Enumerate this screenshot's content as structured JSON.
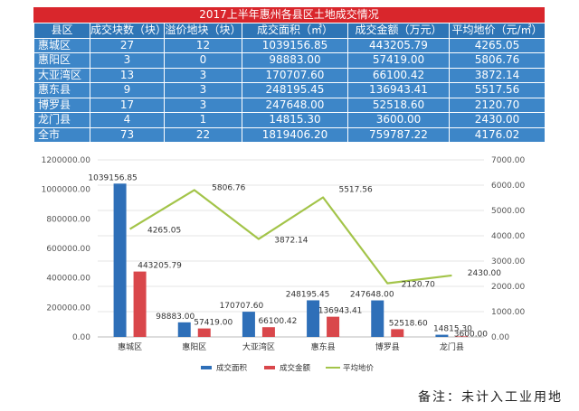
{
  "table": {
    "title": "2017上半年惠州各县区土地成交情况",
    "headers": [
      "县区",
      "成交块数（块）",
      "溢价地块（块）",
      "成交面积（㎡）",
      "成交金额（万元）",
      "平均地价（元/㎡）"
    ],
    "rows": [
      [
        "惠城区",
        "27",
        "12",
        "1039156.85",
        "443205.79",
        "4265.05"
      ],
      [
        "惠阳区",
        "3",
        "0",
        "98883.00",
        "57419.00",
        "5806.76"
      ],
      [
        "大亚湾区",
        "13",
        "3",
        "170707.60",
        "66100.42",
        "3872.14"
      ],
      [
        "惠东县",
        "9",
        "3",
        "248195.45",
        "136943.41",
        "5517.56"
      ],
      [
        "博罗县",
        "17",
        "3",
        "247648.00",
        "52518.60",
        "2120.70"
      ],
      [
        "龙门县",
        "4",
        "1",
        "14815.30",
        "3600.00",
        "2430.00"
      ],
      [
        "全市",
        "73",
        "22",
        "1819406.20",
        "759787.22",
        "4176.02"
      ]
    ]
  },
  "chart_data": {
    "type": "bar",
    "categories": [
      "惠城区",
      "惠阳区",
      "大亚湾区",
      "惠东县",
      "博罗县",
      "龙门县"
    ],
    "series": [
      {
        "name": "成交面积",
        "kind": "bar",
        "axis": "left",
        "color": "#2e6fb8",
        "values": [
          1039156.85,
          98883.0,
          170707.6,
          248195.45,
          247648.0,
          14815.3
        ],
        "labels": [
          "1039156.85",
          "98883.00",
          "170707.60",
          "248195.45",
          "247648.00",
          "14815.30"
        ]
      },
      {
        "name": "成交金额",
        "kind": "bar",
        "axis": "left",
        "color": "#d9474b",
        "values": [
          443205.79,
          57419.0,
          66100.42,
          136943.41,
          52518.6,
          3600.0
        ],
        "labels": [
          "443205.79",
          "57419.00",
          "66100.42",
          "136943.41",
          "52518.60",
          "3600.00"
        ]
      },
      {
        "name": "平均地价",
        "kind": "line",
        "axis": "right",
        "color": "#a3c449",
        "values": [
          4265.05,
          5806.76,
          3872.14,
          5517.56,
          2120.7,
          2430.0
        ],
        "labels": [
          "4265.05",
          "5806.76",
          "3872.14",
          "5517.56",
          "2120.70",
          "2430.00"
        ]
      }
    ],
    "y_left": {
      "min": 0,
      "max": 1200000,
      "ticks": [
        "0.00",
        "200000.00",
        "400000.00",
        "600000.00",
        "800000.00",
        "1000000.00",
        "1200000.00"
      ]
    },
    "y_right": {
      "min": 0,
      "max": 7000,
      "ticks": [
        "0.00",
        "1000.00",
        "2000.00",
        "3000.00",
        "4000.00",
        "5000.00",
        "6000.00",
        "7000.00"
      ]
    },
    "legend_position": "bottom"
  },
  "note": "备注：未计入工业用地"
}
